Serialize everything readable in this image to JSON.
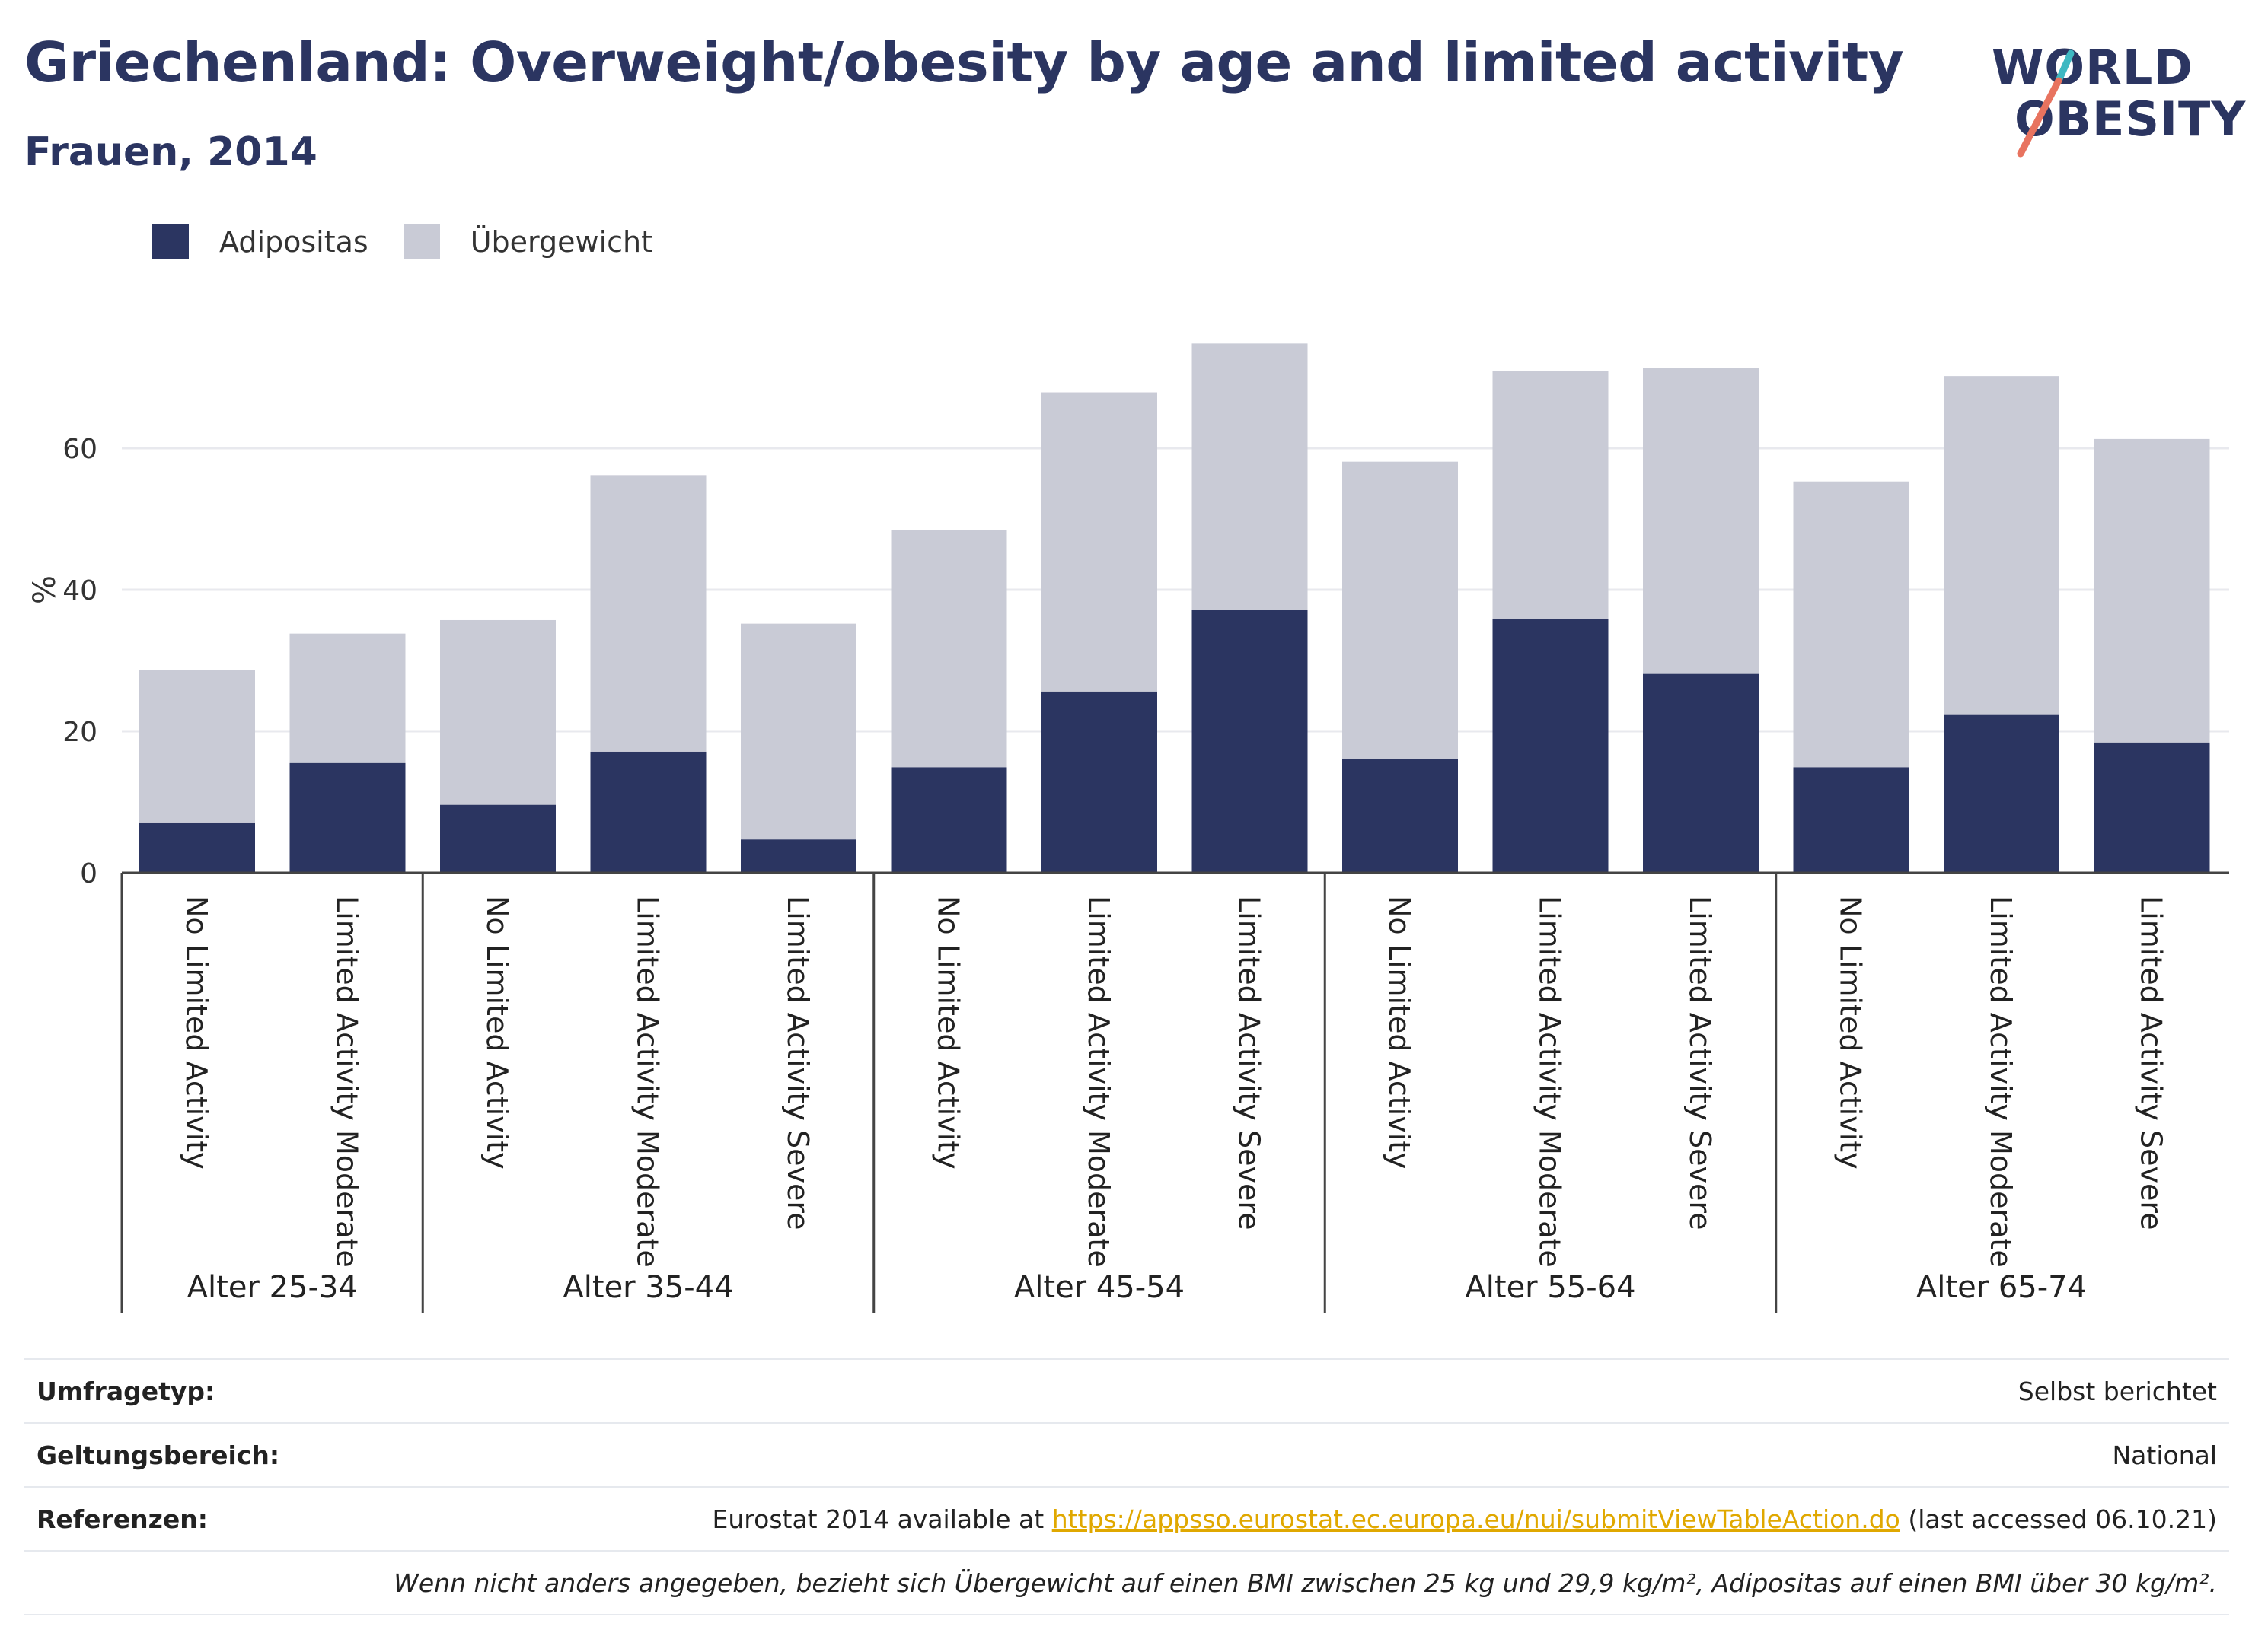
{
  "title": "Griechenland: Overweight/obesity by age and limited activity",
  "subtitle": "Frauen, 2014",
  "logo": {
    "line1": "WORLD",
    "line2": "OBESITY",
    "colors": {
      "navy": "#2b3561",
      "teal": "#3fb8c2",
      "coral": "#e8735f"
    }
  },
  "legend": [
    {
      "label": "Adipositas",
      "color": "#2b3561"
    },
    {
      "label": "Übergewicht",
      "color": "#c9cbd6"
    }
  ],
  "chart_data": {
    "type": "bar",
    "stacked": true,
    "ylabel": "%",
    "ylim": [
      0,
      75
    ],
    "yticks": [
      0,
      20,
      40,
      60
    ],
    "grid": true,
    "legend_position": "top-left",
    "groups": [
      {
        "label": "Alter 25-34",
        "categories": [
          "No Limited Activity",
          "Limited Activity Moderate"
        ]
      },
      {
        "label": "Alter 35-44",
        "categories": [
          "No Limited Activity",
          "Limited Activity Moderate",
          "Limited Activity Severe"
        ]
      },
      {
        "label": "Alter 45-54",
        "categories": [
          "No Limited Activity",
          "Limited Activity Moderate",
          "Limited Activity Severe"
        ]
      },
      {
        "label": "Alter 55-64",
        "categories": [
          "No Limited Activity",
          "Limited Activity Moderate",
          "Limited Activity Severe"
        ]
      },
      {
        "label": "Alter 65-74",
        "categories": [
          "No Limited Activity",
          "Limited Activity Moderate",
          "Limited Activity Severe"
        ]
      }
    ],
    "series": [
      {
        "name": "Adipositas",
        "color": "#2b3561",
        "values": [
          7.1,
          15.5,
          9.6,
          17.1,
          4.7,
          14.9,
          25.6,
          37.1,
          16.1,
          35.9,
          28.1,
          14.9,
          22.4,
          18.4
        ]
      },
      {
        "name": "Übergewicht",
        "color": "#c9cbd6",
        "values": [
          21.6,
          18.3,
          26.1,
          39.1,
          30.5,
          33.5,
          42.3,
          37.7,
          42.0,
          35.0,
          43.2,
          40.4,
          47.8,
          42.9
        ]
      }
    ]
  },
  "info": {
    "rows": [
      {
        "label": "Umfragetyp:",
        "value": "Selbst berichtet"
      },
      {
        "label": "Geltungsbereich:",
        "value": "National"
      }
    ],
    "references": {
      "label": "Referenzen:",
      "prefix": "Eurostat 2014 available at ",
      "link": "https://appsso.eurostat.ec.europa.eu/nui/submitViewTableAction.do",
      "suffix": " (last accessed 06.10.21)"
    },
    "note": "Wenn nicht anders angegeben, bezieht sich Übergewicht auf einen BMI zwischen 25 kg und 29,9 kg/m², Adipositas auf einen BMI über 30 kg/m²."
  }
}
